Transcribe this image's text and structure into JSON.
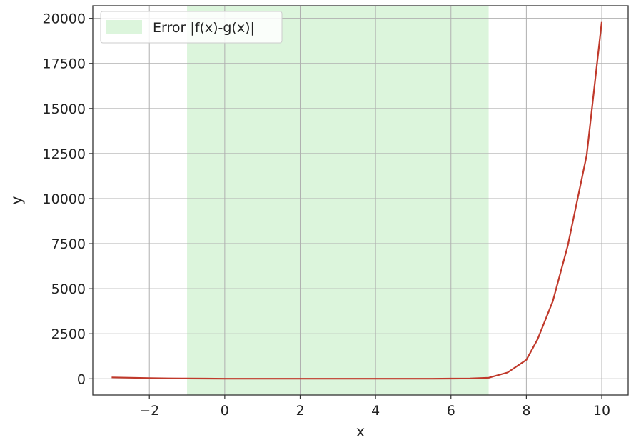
{
  "chart_data": {
    "type": "line",
    "title": "",
    "xlabel": "x",
    "ylabel": "y",
    "xlim": [
      -3.5,
      10.7
    ],
    "ylim": [
      -900,
      20700
    ],
    "xticks": [
      -2,
      0,
      2,
      4,
      6,
      8,
      10
    ],
    "xtick_labels": [
      "−2",
      "0",
      "2",
      "4",
      "6",
      "8",
      "10"
    ],
    "yticks": [
      0,
      2500,
      5000,
      7500,
      10000,
      12500,
      15000,
      17500,
      20000
    ],
    "ytick_labels": [
      "0",
      "2500",
      "5000",
      "7500",
      "10000",
      "12500",
      "15000",
      "17500",
      "20000"
    ],
    "grid": true,
    "legend_position": "top-left",
    "shaded_region": {
      "label": "Error |f(x)-g(x)|",
      "x_start": -1,
      "x_end": 7,
      "color": "#dcf5dc"
    },
    "series": [
      {
        "color": "#c0392b",
        "x": [
          -3,
          -2.5,
          -2,
          -1.5,
          -1,
          -0.5,
          0,
          0.5,
          1,
          1.5,
          2,
          2.5,
          3,
          3.5,
          4,
          4.5,
          5,
          5.5,
          6,
          6.5,
          7,
          7.5,
          8,
          8.3,
          8.7,
          9.1,
          9.6,
          10
        ],
        "y": [
          80,
          60,
          40,
          25,
          15,
          10,
          5,
          5,
          5,
          5,
          5,
          5,
          5,
          5,
          5,
          5,
          5,
          5,
          10,
          20,
          60,
          350,
          1050,
          2200,
          4300,
          7400,
          12400,
          19800
        ]
      }
    ]
  }
}
